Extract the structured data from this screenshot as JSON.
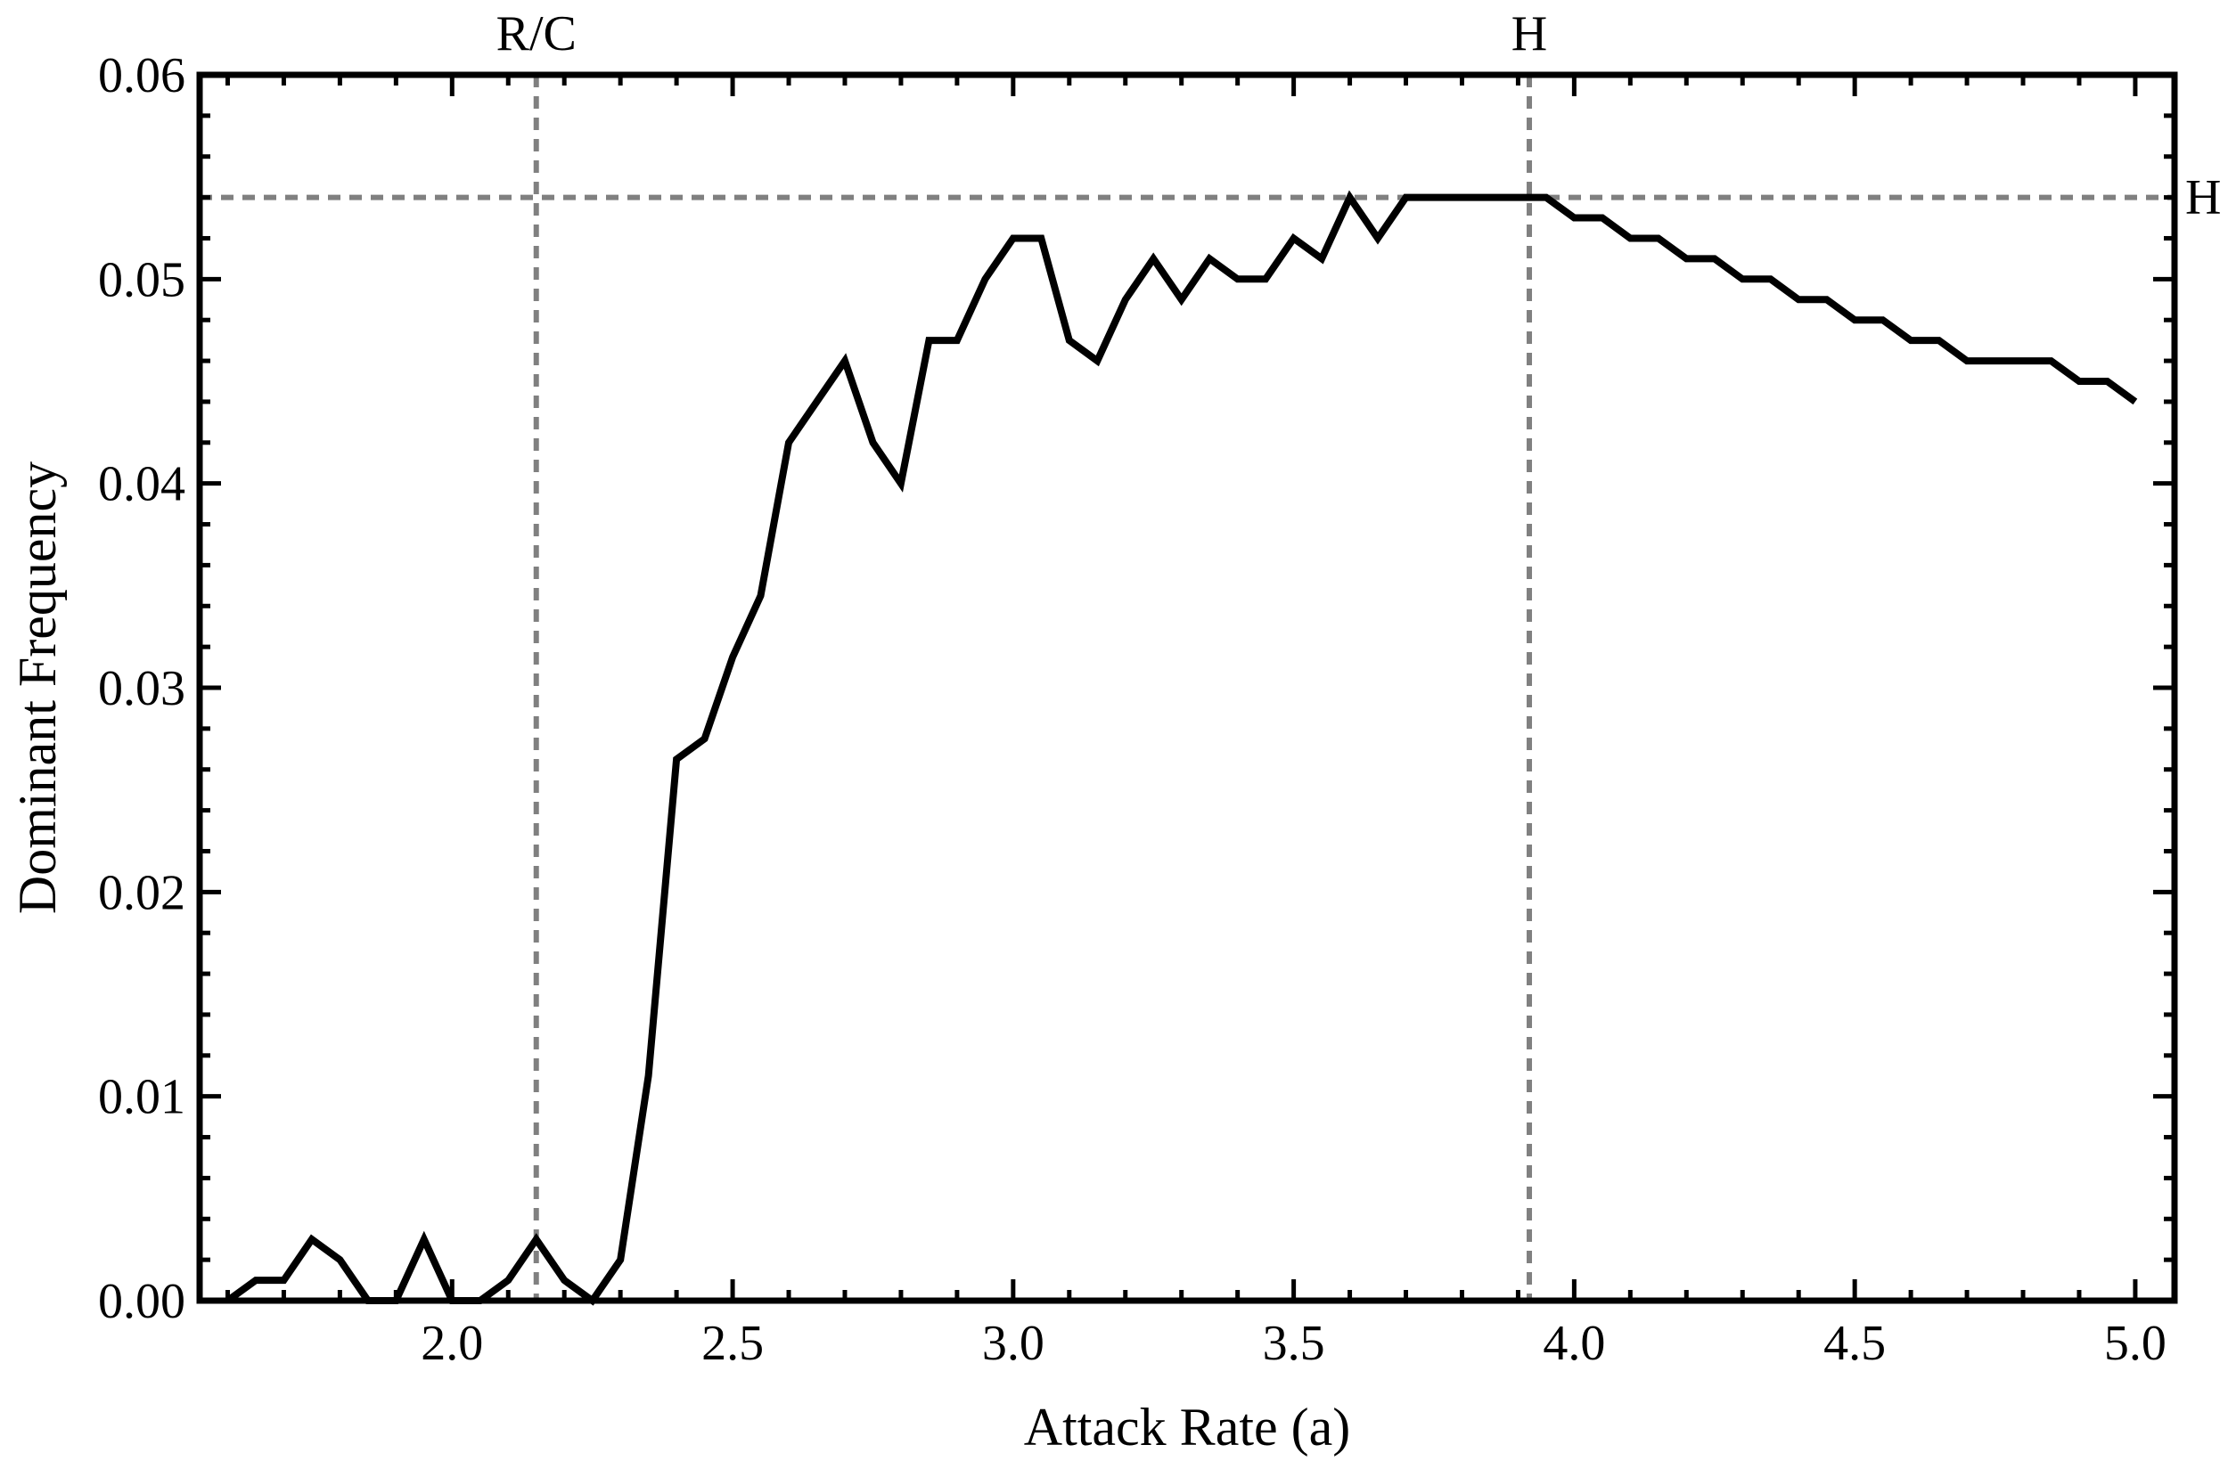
{
  "chart_data": {
    "type": "line",
    "title": "",
    "xlabel": "Attack Rate (a)",
    "ylabel": "Dominant Frequency",
    "xlim": [
      1.55,
      5.07
    ],
    "ylim": [
      0,
      0.06
    ],
    "x_ticks": [
      2.0,
      2.5,
      3.0,
      3.5,
      4.0,
      4.5,
      5.0
    ],
    "x_tick_labels": [
      "2.0",
      "2.5",
      "3.0",
      "3.5",
      "4.0",
      "4.5",
      "5.0"
    ],
    "y_ticks": [
      0,
      0.01,
      0.02,
      0.03,
      0.04,
      0.05,
      0.06
    ],
    "y_tick_labels": [
      "0.00",
      "0.01",
      "0.02",
      "0.03",
      "0.04",
      "0.05",
      "0.06"
    ],
    "grid": false,
    "legend": "none",
    "line_color": "#000000",
    "reference_color": "#808080",
    "reference_lines": [
      {
        "orientation": "vertical",
        "value": 2.15,
        "label": "R/C"
      },
      {
        "orientation": "vertical",
        "value": 3.92,
        "label": "H"
      },
      {
        "orientation": "horizontal",
        "value": 0.054,
        "label": "H"
      }
    ],
    "series": [
      {
        "x": [
          1.6,
          1.65,
          1.7,
          1.75,
          1.8,
          1.85,
          1.9,
          1.95,
          2.0,
          2.05,
          2.1,
          2.15,
          2.2,
          2.25,
          2.3,
          2.35,
          2.4,
          2.45,
          2.5,
          2.55,
          2.6,
          2.65,
          2.7,
          2.75,
          2.8,
          2.85,
          2.9,
          2.95,
          3.0,
          3.05,
          3.1,
          3.15,
          3.2,
          3.25,
          3.3,
          3.35,
          3.4,
          3.45,
          3.5,
          3.55,
          3.6,
          3.65,
          3.7,
          3.75,
          3.8,
          3.85,
          3.9,
          3.95,
          4.0,
          4.05,
          4.1,
          4.15,
          4.2,
          4.25,
          4.3,
          4.35,
          4.4,
          4.45,
          4.5,
          4.55,
          4.6,
          4.65,
          4.7,
          4.75,
          4.8,
          4.85,
          4.9,
          4.95,
          5.0
        ],
        "values": [
          0.0,
          0.001,
          0.001,
          0.003,
          0.002,
          0.0,
          0.0,
          0.003,
          0.0,
          0.0,
          0.001,
          0.003,
          0.001,
          0.0,
          0.002,
          0.011,
          0.0265,
          0.0275,
          0.0315,
          0.0345,
          0.042,
          0.044,
          0.046,
          0.042,
          0.04,
          0.047,
          0.047,
          0.05,
          0.052,
          0.052,
          0.047,
          0.046,
          0.049,
          0.051,
          0.049,
          0.051,
          0.05,
          0.05,
          0.052,
          0.051,
          0.054,
          0.052,
          0.054,
          0.054,
          0.054,
          0.054,
          0.054,
          0.054,
          0.053,
          0.053,
          0.052,
          0.052,
          0.051,
          0.051,
          0.05,
          0.05,
          0.049,
          0.049,
          0.048,
          0.048,
          0.047,
          0.047,
          0.046,
          0.046,
          0.046,
          0.046,
          0.045,
          0.045,
          0.044
        ]
      }
    ]
  }
}
